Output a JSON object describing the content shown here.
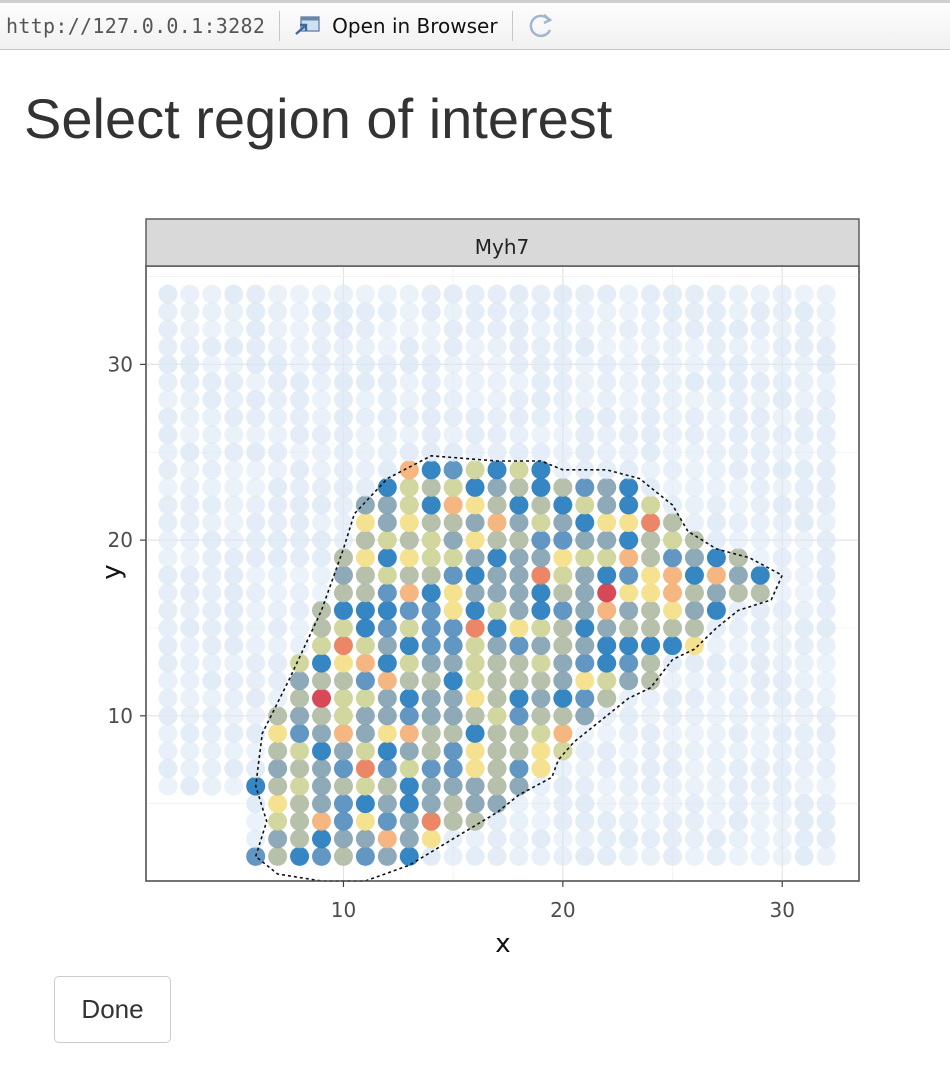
{
  "toolbar": {
    "url": "http://127.0.0.1:3282",
    "open_in_browser": "Open in Browser"
  },
  "page": {
    "title": "Select region of interest"
  },
  "done_button": {
    "label": "Done"
  },
  "chart_data": {
    "type": "scatter",
    "facet_title": "Myh7",
    "xlabel": "x",
    "ylabel": "y",
    "xlim": [
      1.0,
      33.5
    ],
    "ylim": [
      0.6,
      35.6
    ],
    "x_ticks": [
      10,
      20,
      30
    ],
    "y_ticks": [
      10,
      20,
      30
    ],
    "grid": true,
    "legend": "none",
    "points": {
      "x_range": [
        2,
        32
      ],
      "y_range": [
        2,
        34
      ],
      "y_min_outside_region": 6,
      "description_values": "spot grid with expression-coloured spots inside lasso"
    },
    "lasso_polygon": [
      [
        6,
        2
      ],
      [
        6.5,
        4
      ],
      [
        6,
        6
      ],
      [
        6.3,
        9
      ],
      [
        7.5,
        12
      ],
      [
        9,
        16
      ],
      [
        10,
        19.5
      ],
      [
        10.5,
        21.5
      ],
      [
        12,
        23.5
      ],
      [
        14,
        24.8
      ],
      [
        17,
        24.5
      ],
      [
        19,
        24.5
      ],
      [
        20,
        24
      ],
      [
        22,
        24
      ],
      [
        23.5,
        23.5
      ],
      [
        25,
        22
      ],
      [
        25.7,
        20.5
      ],
      [
        27,
        19.5
      ],
      [
        28.5,
        19
      ],
      [
        30,
        18
      ],
      [
        29.5,
        16.6
      ],
      [
        28,
        16
      ],
      [
        27,
        15
      ],
      [
        26,
        13.8
      ],
      [
        25,
        13.2
      ],
      [
        24,
        11.6
      ],
      [
        23,
        11
      ],
      [
        22,
        10
      ],
      [
        20.5,
        8.5
      ],
      [
        19.8,
        7.5
      ],
      [
        19.5,
        6.5
      ],
      [
        18,
        5.5
      ],
      [
        17,
        4.5
      ],
      [
        15,
        3
      ],
      [
        13,
        1.5
      ],
      [
        11,
        0.6
      ],
      [
        9,
        0.6
      ],
      [
        7,
        1
      ]
    ],
    "colors": {
      "background_spot": "#dce8f5",
      "palette": [
        "#2a7fc0",
        "#5a90c0",
        "#88a4b4",
        "#b2bda6",
        "#d0d49a",
        "#f3e08a",
        "#f4b27a",
        "#ea7f5e",
        "#d63f4f"
      ]
    }
  }
}
